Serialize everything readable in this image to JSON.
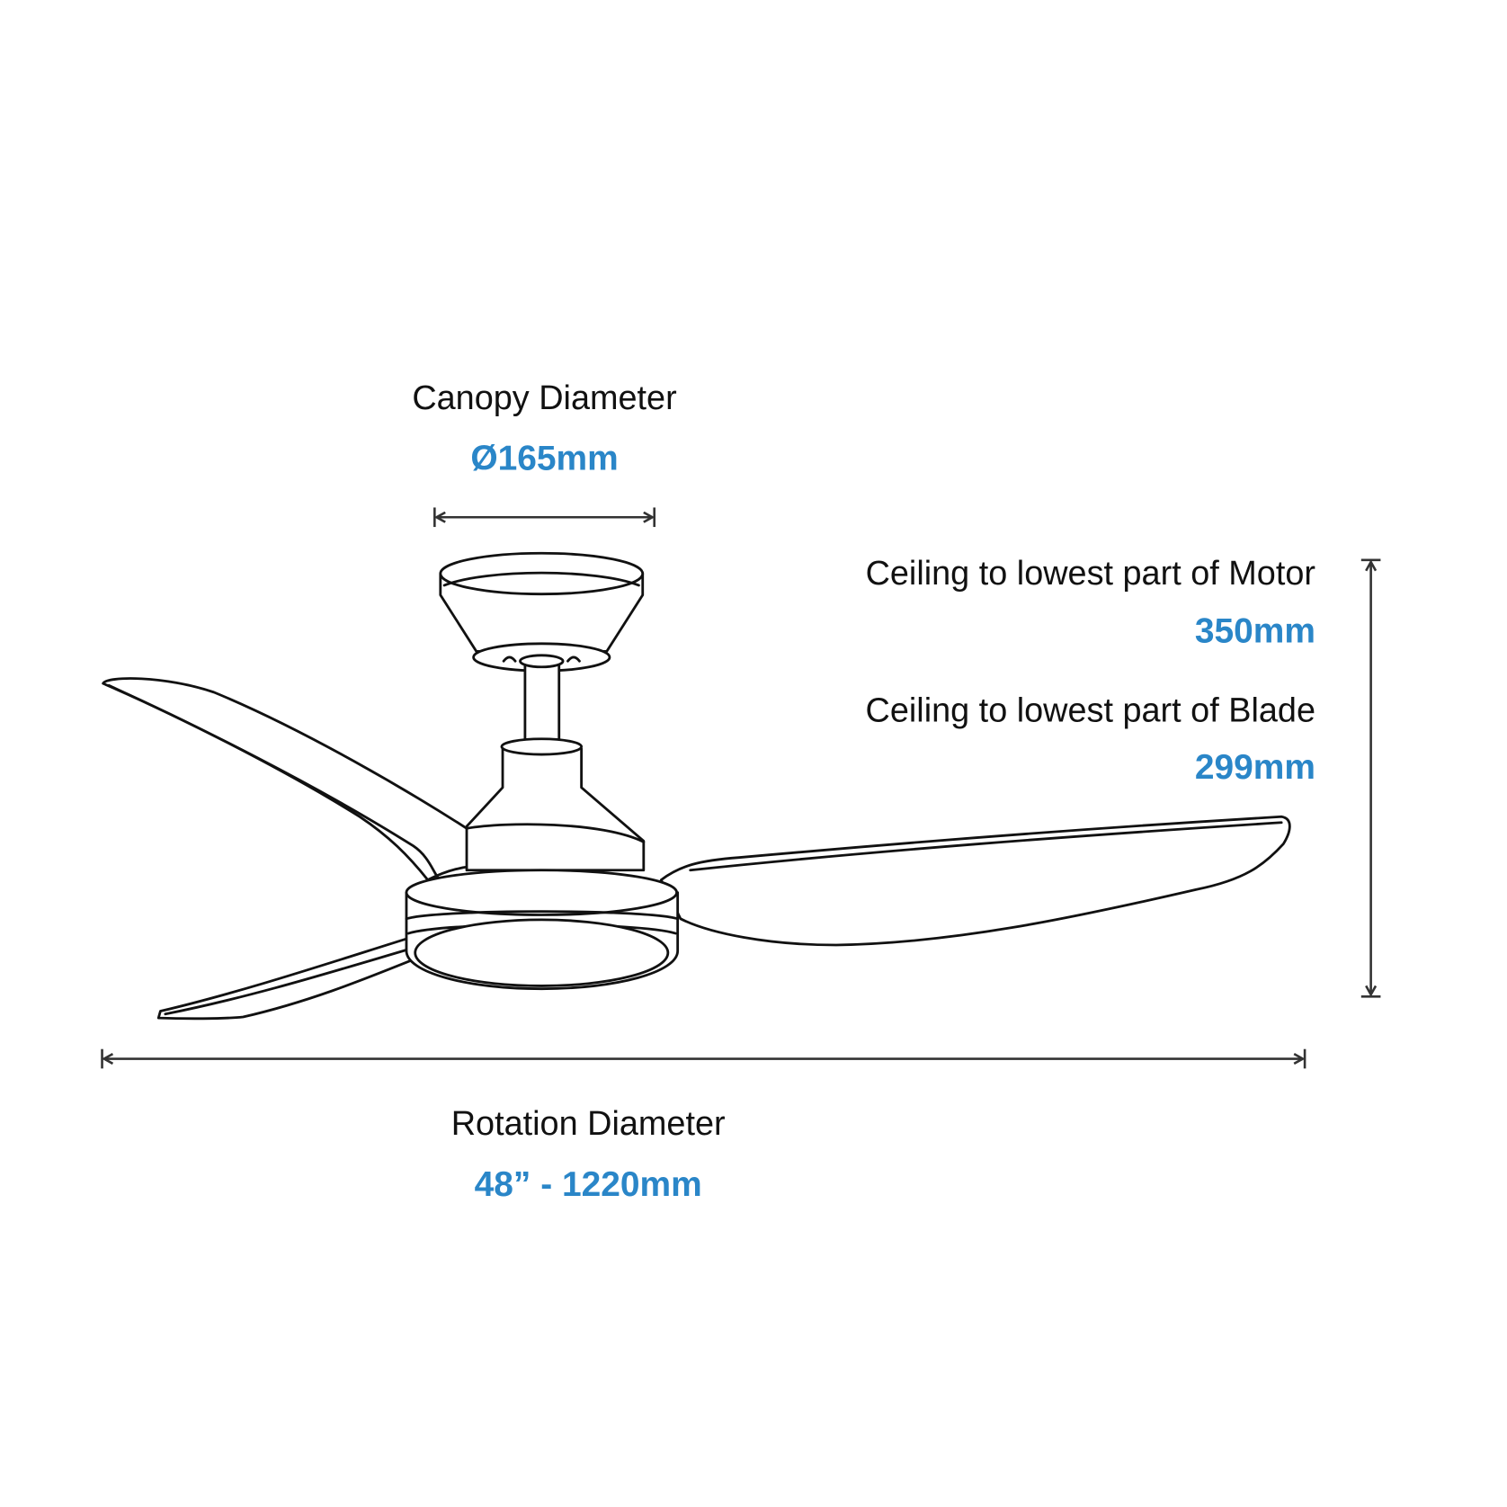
{
  "colors": {
    "accent": "#2a86c8",
    "line": "#111111"
  },
  "canopy": {
    "label": "Canopy Diameter",
    "value": "Ø165mm"
  },
  "motor_height": {
    "label": "Ceiling to lowest part of Motor",
    "value": "350mm"
  },
  "blade_height": {
    "label": "Ceiling to lowest part of Blade",
    "value": "299mm"
  },
  "rotation": {
    "label": "Rotation Diameter",
    "value": "48” - 1220mm"
  }
}
